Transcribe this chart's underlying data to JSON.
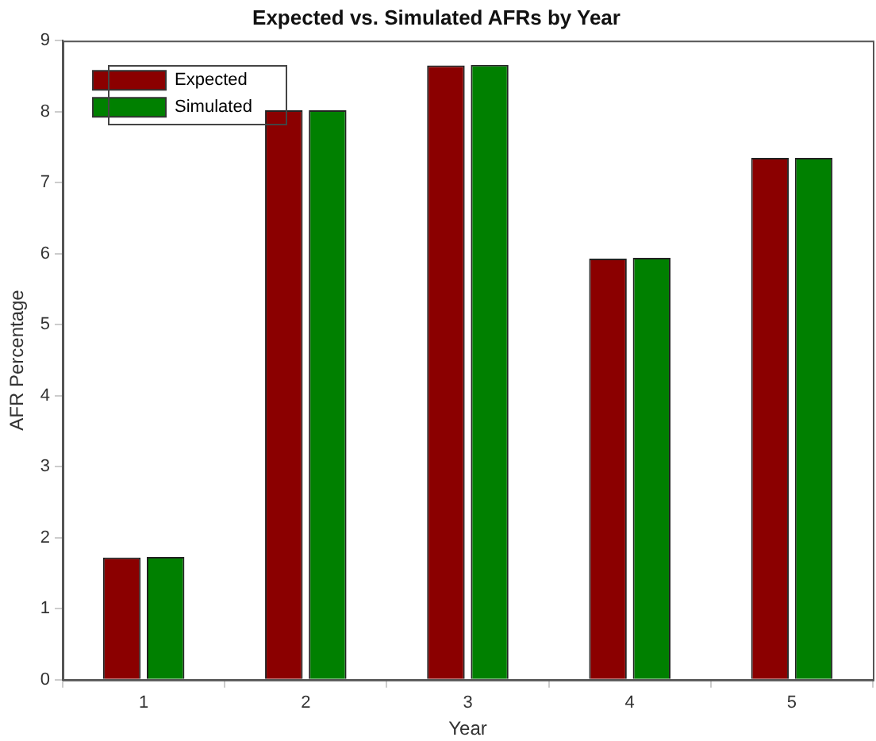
{
  "chart_data": {
    "type": "bar",
    "title": "Expected vs. Simulated AFRs by Year",
    "xlabel": "Year",
    "ylabel": "AFR Percentage",
    "categories": [
      "1",
      "2",
      "3",
      "4",
      "5"
    ],
    "series": [
      {
        "name": "Expected",
        "color": "#8b0000",
        "values": [
          1.72,
          8.02,
          8.65,
          5.93,
          7.35
        ]
      },
      {
        "name": "Simulated",
        "color": "#008000",
        "values": [
          1.73,
          8.02,
          8.66,
          5.94,
          7.35
        ]
      }
    ],
    "ylim": [
      0,
      9
    ],
    "yticks": [
      0,
      1,
      2,
      3,
      4,
      5,
      6,
      7,
      8,
      9
    ],
    "grid": false,
    "legend": "top left"
  }
}
